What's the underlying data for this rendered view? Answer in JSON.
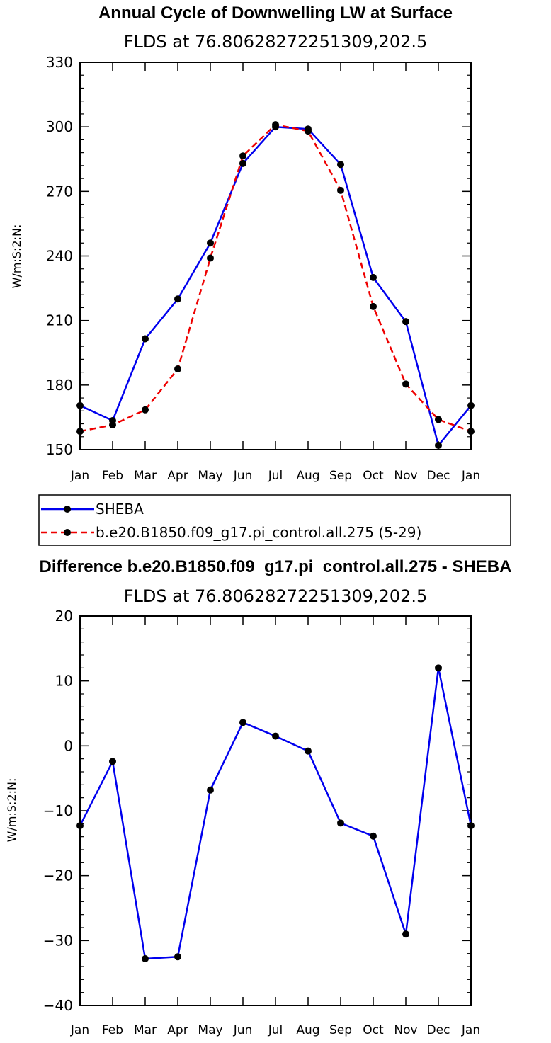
{
  "chart_data": [
    {
      "type": "line",
      "title": "Annual Cycle of Downwelling LW at Surface",
      "subtitle": "FLDS at 76.80628272251309,202.5",
      "ylabel": "W/m:S:2:N:",
      "ylim": [
        150,
        330
      ],
      "yticks": [
        150,
        180,
        210,
        240,
        270,
        300,
        330
      ],
      "categories": [
        "Jan",
        "Feb",
        "Mar",
        "Apr",
        "May",
        "Jun",
        "Jul",
        "Aug",
        "Sep",
        "Oct",
        "Nov",
        "Dec",
        "Jan"
      ],
      "series": [
        {
          "name": "SHEBA",
          "color": "#0000ee",
          "dash": "solid",
          "values": [
            170.5,
            163.5,
            201.5,
            220,
            246,
            283,
            300,
            299,
            282.5,
            230,
            209.5,
            152,
            170.5
          ]
        },
        {
          "name": "b.e20.B1850.f09_g17.pi_control.all.275 (5-29)",
          "color": "#ee0000",
          "dash": "dashed",
          "values": [
            158.5,
            161.5,
            168.5,
            187.5,
            239,
            286.5,
            301,
            298,
            270.5,
            216.5,
            180.5,
            164,
            158.5
          ]
        }
      ],
      "legend": "below"
    },
    {
      "type": "line",
      "title": "Difference b.e20.B1850.f09_g17.pi_control.all.275 - SHEBA",
      "subtitle": "FLDS at 76.80628272251309,202.5",
      "ylabel": "W/m:S:2:N:",
      "ylim": [
        -40,
        20
      ],
      "yticks": [
        -40,
        -30,
        -20,
        -10,
        0,
        10,
        20
      ],
      "ytick_labels": [
        "−40",
        "−30",
        "−20",
        "−10",
        "0",
        "10",
        "20"
      ],
      "categories": [
        "Jan",
        "Feb",
        "Mar",
        "Apr",
        "May",
        "Jun",
        "Jul",
        "Aug",
        "Sep",
        "Oct",
        "Nov",
        "Dec",
        "Jan"
      ],
      "series": [
        {
          "color": "#0000ee",
          "dash": "solid",
          "values": [
            -12.3,
            -2.4,
            -32.8,
            -32.5,
            -6.8,
            3.6,
            1.5,
            -0.8,
            -11.9,
            -13.9,
            -29.0,
            12.0,
            -12.3
          ]
        }
      ]
    }
  ]
}
